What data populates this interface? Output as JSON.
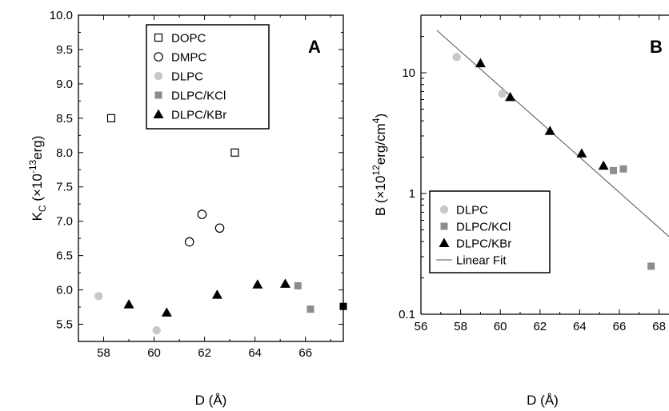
{
  "chart_data": [
    {
      "type": "scatter",
      "panel_label": "A",
      "xlabel": "D (Å)",
      "ylabel": "K",
      "ylabel_sub": "C",
      "ylabel_units_pre": " (×10",
      "ylabel_units_exp": "-13",
      "ylabel_units_post": "erg)",
      "xlim": [
        57,
        67.5
      ],
      "ylim": [
        5.25,
        10.0
      ],
      "xticks": [
        58,
        60,
        62,
        64,
        66
      ],
      "yticks": [
        5.5,
        6.0,
        6.5,
        7.0,
        7.5,
        8.0,
        8.5,
        9.0,
        9.5,
        10.0
      ],
      "ytick_labels": [
        "5.5",
        "6.0",
        "6.5",
        "7.0",
        "7.5",
        "8.0",
        "8.5",
        "9.0",
        "9.5",
        "10.0"
      ],
      "grid": false,
      "legend_position": "top-right",
      "series": [
        {
          "name": "DOPC",
          "marker": "open-square",
          "color": "#000000",
          "points": [
            [
              58.3,
              8.5
            ],
            [
              63.2,
              8.0
            ]
          ]
        },
        {
          "name": "DMPC",
          "marker": "open-circle",
          "color": "#000000",
          "points": [
            [
              61.4,
              6.7
            ],
            [
              61.9,
              7.1
            ],
            [
              62.6,
              6.9
            ]
          ]
        },
        {
          "name": "DLPC",
          "marker": "filled-circle",
          "color": "#c8c8c8",
          "points": [
            [
              57.8,
              5.91
            ],
            [
              60.1,
              5.41
            ]
          ]
        },
        {
          "name": "DLPC/KCl",
          "marker": "filled-square",
          "color": "#8c8c8c",
          "points": [
            [
              65.7,
              6.06
            ],
            [
              66.2,
              5.72
            ]
          ]
        },
        {
          "name": "DLPC/KBr",
          "marker": "filled-triangle",
          "color": "#000000",
          "points": [
            [
              59.0,
              5.79
            ],
            [
              60.5,
              5.67
            ],
            [
              62.5,
              5.93
            ],
            [
              64.1,
              6.08
            ],
            [
              65.2,
              6.09
            ]
          ]
        },
        {
          "name": "",
          "marker": "filled-square",
          "color": "#000000",
          "points": [
            [
              67.5,
              5.76
            ]
          ]
        }
      ]
    },
    {
      "type": "scatter",
      "panel_label": "B",
      "xlabel": "D (Å)",
      "ylabel_pre": "B (×10",
      "ylabel_exp1": "12",
      "ylabel_mid": "erg/cm",
      "ylabel_exp2": "4",
      "ylabel_post": ")",
      "yscale": "log",
      "xlim": [
        56,
        68.5
      ],
      "ylim": [
        0.1,
        30
      ],
      "xticks": [
        56,
        58,
        60,
        62,
        64,
        66,
        68
      ],
      "yticks": [
        0.1,
        1,
        10
      ],
      "ytick_labels": [
        "0.1",
        "1",
        "10"
      ],
      "grid": false,
      "legend_position": "bottom-left",
      "series": [
        {
          "name": "DLPC",
          "marker": "filled-circle",
          "color": "#c8c8c8",
          "points": [
            [
              57.8,
              13.5
            ],
            [
              60.1,
              6.7
            ]
          ]
        },
        {
          "name": "DLPC/KCl",
          "marker": "filled-square",
          "color": "#8c8c8c",
          "points": [
            [
              65.7,
              1.55
            ],
            [
              66.2,
              1.6
            ],
            [
              67.6,
              0.25
            ]
          ]
        },
        {
          "name": "DLPC/KBr",
          "marker": "filled-triangle",
          "color": "#000000",
          "points": [
            [
              59.0,
              12.0
            ],
            [
              60.5,
              6.3
            ],
            [
              62.5,
              3.3
            ],
            [
              64.1,
              2.15
            ],
            [
              65.2,
              1.7
            ]
          ]
        }
      ],
      "fit": {
        "name": "Linear Fit",
        "color": "#555555",
        "points": [
          [
            56.8,
            22.5
          ],
          [
            68.5,
            0.44
          ]
        ]
      }
    }
  ]
}
